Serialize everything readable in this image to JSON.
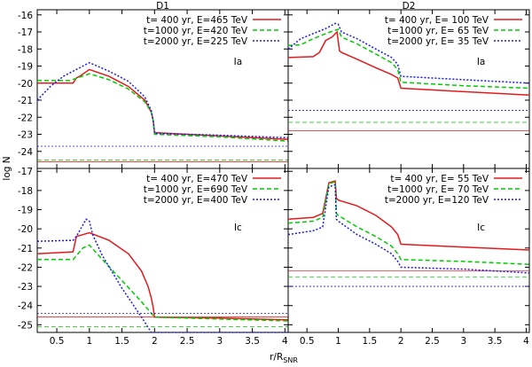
{
  "y_axis_label": "log N",
  "x_axis_label": "r/R",
  "x_axis_label_sub": "SNR",
  "colors": {
    "s400": "#e41a1c",
    "s1000": "#00cc00",
    "s2000": "#1a1ae6"
  },
  "chart_data": [
    {
      "type": "line",
      "title": "D1",
      "annotation": "Ia",
      "xlim": [
        0.2,
        4.05
      ],
      "ylim": [
        -25,
        -15.7
      ],
      "yticks": [
        -16,
        -17,
        -18,
        -19,
        -20,
        -21,
        -22,
        -23,
        -24
      ],
      "xticks": [],
      "legend": [
        "t=  400 yr, E=465 TeV",
        "t=1000 yr, E=420 TeV",
        "t=2000 yr, E=225 TeV"
      ],
      "series": [
        {
          "name": "t=  400 yr, E=465 TeV",
          "color": "#e41a1c",
          "dash": "",
          "x": [
            0.2,
            0.75,
            0.8,
            0.85,
            1.0,
            1.3,
            1.6,
            1.85,
            1.95,
            1.98,
            2.0,
            3.0,
            4.05
          ],
          "y": [
            -20.0,
            -20.0,
            -19.7,
            -19.6,
            -19.2,
            -19.6,
            -20.2,
            -21.0,
            -21.7,
            -22.2,
            -22.9,
            -23.1,
            -23.3
          ],
          "bg": -24.6
        },
        {
          "name": "t=1000 yr, E=420 TeV",
          "color": "#00cc00",
          "dash": "5,3",
          "x": [
            0.2,
            0.7,
            1.0,
            1.3,
            1.6,
            1.85,
            1.95,
            1.98,
            2.0,
            3.0,
            4.05
          ],
          "y": [
            -19.85,
            -19.85,
            -19.45,
            -19.8,
            -20.35,
            -21.1,
            -21.7,
            -22.2,
            -23.0,
            -23.15,
            -23.4
          ],
          "bg": -24.5
        },
        {
          "name": "t=2000 yr, E=225 TeV",
          "color": "#1a1ae6",
          "dash": "2,2",
          "x": [
            0.2,
            0.4,
            0.6,
            0.8,
            1.0,
            1.3,
            1.6,
            1.85,
            1.95,
            1.98,
            2.0,
            3.0,
            4.05
          ],
          "y": [
            -21.0,
            -20.2,
            -19.6,
            -19.2,
            -18.8,
            -19.3,
            -19.9,
            -20.8,
            -21.6,
            -22.2,
            -22.95,
            -23.05,
            -23.2
          ],
          "bg": -23.7
        }
      ]
    },
    {
      "type": "line",
      "title": "D2",
      "annotation": "Ia",
      "xlim": [
        0.2,
        4.05
      ],
      "ylim": [
        -25,
        -15.7
      ],
      "yticks": [],
      "xticks": [],
      "legend": [
        "t=  400 yr, E= 100 TeV",
        "t=1000 yr, E=  65 TeV",
        "t=2000 yr, E=  35 TeV"
      ],
      "series": [
        {
          "name": "t=  400 yr, E= 100 TeV",
          "color": "#e41a1c",
          "dash": "",
          "x": [
            0.2,
            0.6,
            0.7,
            0.8,
            0.9,
            0.98,
            1.02,
            1.05,
            1.3,
            1.6,
            1.85,
            1.95,
            2.0,
            3.0,
            4.05
          ],
          "y": [
            -18.5,
            -18.45,
            -18.2,
            -17.5,
            -17.3,
            -17.0,
            -18.1,
            -18.2,
            -18.6,
            -19.1,
            -19.5,
            -19.7,
            -20.3,
            -20.5,
            -20.7
          ],
          "bg": -22.8
        },
        {
          "name": "t=1000 yr, E=  65 TeV",
          "color": "#00cc00",
          "dash": "5,3",
          "x": [
            0.2,
            0.4,
            0.6,
            0.8,
            0.95,
            1.0,
            1.05,
            1.3,
            1.6,
            1.85,
            1.95,
            2.0,
            3.0,
            4.05
          ],
          "y": [
            -17.8,
            -17.75,
            -17.4,
            -17.1,
            -16.9,
            -16.85,
            -17.3,
            -17.7,
            -18.3,
            -18.8,
            -19.2,
            -19.95,
            -20.15,
            -20.3
          ],
          "bg": -22.3
        },
        {
          "name": "t=2000 yr, E=  35 TeV",
          "color": "#1a1ae6",
          "dash": "2,2",
          "x": [
            0.2,
            0.4,
            0.6,
            0.8,
            0.95,
            1.0,
            1.05,
            1.3,
            1.6,
            1.85,
            1.95,
            2.0,
            3.0,
            4.05
          ],
          "y": [
            -18.0,
            -17.4,
            -17.1,
            -16.8,
            -16.5,
            -16.55,
            -17.0,
            -17.4,
            -18.0,
            -18.5,
            -18.9,
            -19.6,
            -19.8,
            -20.0
          ],
          "bg": -21.6
        }
      ]
    },
    {
      "type": "line",
      "title": "",
      "annotation": "Ic",
      "xlim": [
        0.2,
        4.05
      ],
      "ylim": [
        -25.4,
        -16.85
      ],
      "yticks": [
        -17,
        -18,
        -19,
        -20,
        -21,
        -22,
        -23,
        -24,
        -25
      ],
      "xticks": [
        0.5,
        1,
        1.5,
        2,
        2.5,
        3,
        3.5,
        4
      ],
      "legend": [
        "t=  400 yr, E=470 TeV",
        "t=1000 yr, E=690 TeV",
        "t=2000 yr, E=400 TeV"
      ],
      "series": [
        {
          "name": "t=  400 yr, E=470 TeV",
          "color": "#e41a1c",
          "dash": "",
          "x": [
            0.2,
            0.75,
            0.8,
            1.0,
            1.3,
            1.6,
            1.8,
            1.9,
            1.95,
            1.98,
            2.0,
            3.0,
            4.05
          ],
          "y": [
            -21.3,
            -21.2,
            -20.4,
            -20.2,
            -20.6,
            -21.3,
            -22.2,
            -23.0,
            -23.6,
            -24.1,
            -24.6,
            -24.65,
            -24.75
          ],
          "bg": -24.6
        },
        {
          "name": "t=1000 yr, E=690 TeV",
          "color": "#00cc00",
          "dash": "5,3",
          "x": [
            0.2,
            0.75,
            0.8,
            0.9,
            1.0,
            1.2,
            1.5,
            1.8,
            1.95,
            2.0,
            3.0,
            4.05
          ],
          "y": [
            -21.6,
            -21.6,
            -21.4,
            -21.0,
            -20.85,
            -21.6,
            -22.7,
            -23.8,
            -24.4,
            -24.6,
            -24.7,
            -24.8
          ],
          "bg": -25.1
        },
        {
          "name": "t=2000 yr, E=400 TeV",
          "color": "#1a1ae6",
          "dash": "2,2",
          "x": [
            0.2,
            0.75,
            0.8,
            0.9,
            0.95,
            1.0,
            1.05,
            1.2,
            1.5,
            1.8,
            1.95,
            2.0,
            3.0,
            4.05
          ],
          "y": [
            -20.65,
            -20.6,
            -20.4,
            -19.8,
            -19.5,
            -19.6,
            -20.3,
            -21.4,
            -23.1,
            -24.6,
            -25.4,
            -25.4,
            -25.4,
            -25.4
          ],
          "bg": -24.4
        }
      ]
    },
    {
      "type": "line",
      "title": "",
      "annotation": "Ic",
      "xlim": [
        0.2,
        4.05
      ],
      "ylim": [
        -25.4,
        -16.85
      ],
      "yticks": [],
      "xticks": [
        0.5,
        1,
        1.5,
        2,
        2.5,
        3,
        3.5,
        4
      ],
      "legend": [
        "t=  400 yr, E=  55 TeV",
        "t=1000 yr, E=  70 TeV",
        "t=2000 yr, E=120 TeV"
      ],
      "series": [
        {
          "name": "t=  400 yr, E=  55 TeV",
          "color": "#e41a1c",
          "dash": "",
          "x": [
            0.2,
            0.6,
            0.75,
            0.85,
            0.95,
            0.97,
            1.0,
            1.3,
            1.6,
            1.85,
            1.95,
            2.0,
            3.0,
            4.05
          ],
          "y": [
            -19.5,
            -19.4,
            -19.2,
            -17.6,
            -17.5,
            -18.4,
            -18.5,
            -18.8,
            -19.3,
            -19.9,
            -20.3,
            -20.8,
            -20.95,
            -21.1
          ],
          "bg": -22.2
        },
        {
          "name": "t=1000 yr, E=  70 TeV",
          "color": "#00cc00",
          "dash": "5,3",
          "x": [
            0.2,
            0.6,
            0.75,
            0.85,
            0.95,
            0.97,
            1.0,
            1.3,
            1.6,
            1.85,
            1.95,
            2.0,
            3.0,
            4.05
          ],
          "y": [
            -19.7,
            -19.6,
            -19.4,
            -17.65,
            -17.55,
            -19.2,
            -19.3,
            -19.9,
            -20.4,
            -20.9,
            -21.3,
            -21.6,
            -21.7,
            -21.85
          ],
          "bg": -22.5
        },
        {
          "name": "t=2000 yr, E=120 TeV",
          "color": "#1a1ae6",
          "dash": "2,2",
          "x": [
            0.2,
            0.6,
            0.75,
            0.85,
            0.95,
            0.97,
            1.0,
            1.3,
            1.6,
            1.85,
            1.95,
            2.0,
            3.0,
            4.05
          ],
          "y": [
            -20.3,
            -20.1,
            -19.9,
            -17.8,
            -17.7,
            -19.5,
            -19.6,
            -20.3,
            -20.8,
            -21.3,
            -21.7,
            -22.0,
            -22.1,
            -22.3
          ],
          "bg": -23.0
        }
      ]
    }
  ]
}
